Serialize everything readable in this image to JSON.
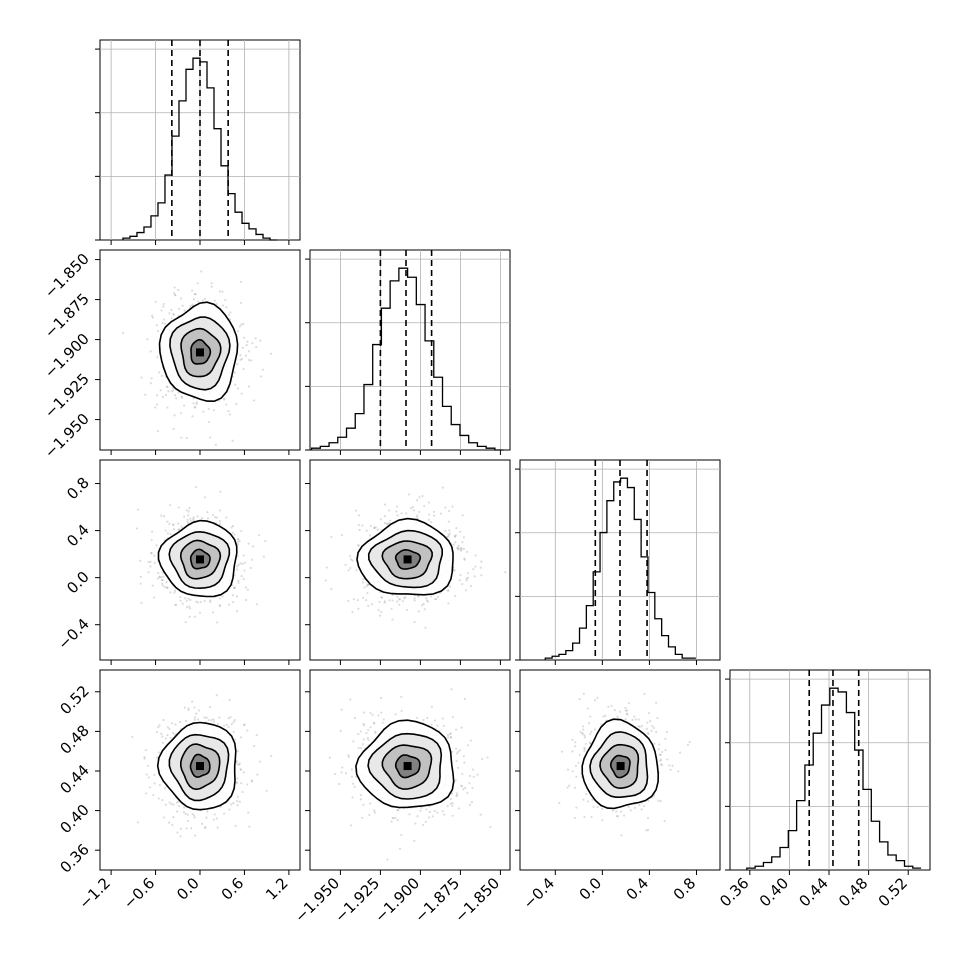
{
  "chart_data": {
    "type": "corner",
    "parameters": [
      {
        "range": [
          -1.35,
          1.35
        ],
        "ticks": [
          -1.2,
          -0.6,
          0.0,
          0.6,
          1.2
        ],
        "tick_labels": [
          "−1.2",
          "−0.6",
          "0.0",
          "0.6",
          "1.2"
        ],
        "quantiles": [
          -0.38,
          0.0,
          0.38
        ],
        "mean": 0.0,
        "sd": 0.26
      },
      {
        "range": [
          -1.969,
          -1.844
        ],
        "ticks": [
          -1.95,
          -1.925,
          -1.9,
          -1.875,
          -1.85
        ],
        "tick_labels": [
          "−1.950",
          "−1.925",
          "−1.900",
          "−1.875",
          "−1.850"
        ],
        "quantiles": [
          -1.925,
          -1.909,
          -1.893
        ],
        "mean": -1.908,
        "sd": 0.015
      },
      {
        "range": [
          -0.7,
          1.0
        ],
        "ticks": [
          -0.4,
          0.0,
          0.4,
          0.8
        ],
        "tick_labels": [
          "−0.4",
          "0.0",
          "0.4",
          "0.8"
        ],
        "quantiles": [
          -0.06,
          0.15,
          0.38
        ],
        "mean": 0.155,
        "sd": 0.16
      },
      {
        "range": [
          0.34,
          0.542
        ],
        "ticks": [
          0.36,
          0.4,
          0.44,
          0.48,
          0.52
        ],
        "tick_labels": [
          "0.36",
          "0.40",
          "0.44",
          "0.48",
          "0.52"
        ],
        "quantiles": [
          0.42,
          0.444,
          0.47
        ],
        "mean": 0.445,
        "sd": 0.022
      }
    ],
    "diagonal": [
      {
        "counts": [
          1,
          2,
          4,
          7,
          13,
          20,
          35,
          56,
          75,
          92,
          98,
          96,
          82,
          60,
          40,
          25,
          15,
          9,
          6,
          3,
          1,
          0
        ]
      },
      {
        "counts": [
          1,
          2,
          4,
          7,
          12,
          20,
          36,
          58,
          78,
          93,
          100,
          95,
          80,
          60,
          40,
          24,
          14,
          8,
          4,
          2,
          1,
          0
        ]
      },
      {
        "counts": [
          1,
          2,
          3,
          5,
          9,
          17,
          29,
          47,
          68,
          85,
          95,
          97,
          92,
          75,
          55,
          36,
          22,
          13,
          7,
          3,
          1,
          1
        ]
      },
      {
        "counts": [
          1,
          2,
          4,
          7,
          12,
          21,
          37,
          56,
          73,
          88,
          97,
          95,
          84,
          64,
          43,
          26,
          15,
          8,
          5,
          2,
          1
        ]
      }
    ],
    "contour_levels_sigma": [
      0.5,
      1.0,
      1.5,
      2.0
    ],
    "axes_style": "grid-on",
    "plotted_series": [
      "param-0-vs-param-1",
      "param-0-vs-param-2",
      "param-0-vs-param-3",
      "param-1-vs-param-2",
      "param-1-vs-param-3",
      "param-2-vs-param-3"
    ],
    "colors": {
      "points": "#9a9a9a",
      "lines": "#000000",
      "grid": "#b0b0b0"
    }
  }
}
